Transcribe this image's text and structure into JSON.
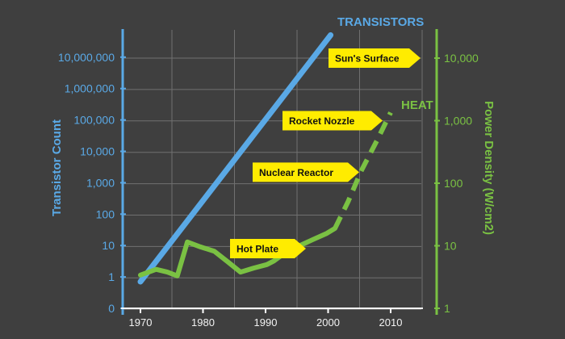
{
  "chart_data": {
    "type": "line",
    "x_ticks": [
      "1970",
      "1980",
      "1990",
      "2000",
      "2010"
    ],
    "xlim": [
      1967,
      2015
    ],
    "left_axis": {
      "title": "Transistor Count",
      "ticks": [
        "0",
        "1",
        "10",
        "100",
        "1,000",
        "10,000",
        "100,000",
        "1,000,000",
        "10,000,000"
      ],
      "scale": "log"
    },
    "right_axis": {
      "title": "Power Density (W/cm2)",
      "ticks": [
        "1",
        "10",
        "100",
        "1,000",
        "10,000"
      ],
      "scale": "log"
    },
    "grid": true,
    "series": [
      {
        "name": "TRANSISTORS",
        "axis": "left",
        "style": "solid",
        "color": "#5aa9e6",
        "points": [
          [
            1970,
            0.7
          ],
          [
            2000.4,
            50000000
          ]
        ]
      },
      {
        "name": "HEAT",
        "axis": "right",
        "style": "solid-then-dashed",
        "color": "#7ac143",
        "points": [
          [
            1970,
            3.4
          ],
          [
            1972.5,
            4.2
          ],
          [
            1974.3,
            3.8
          ],
          [
            1975.9,
            3.3
          ],
          [
            1977.5,
            11.5
          ],
          [
            1979.6,
            9.6
          ],
          [
            1981.8,
            8.2
          ],
          [
            1983.9,
            5.6
          ],
          [
            1986,
            3.8
          ],
          [
            1988.1,
            4.4
          ],
          [
            1990.2,
            5.0
          ],
          [
            1991.3,
            5.7
          ],
          [
            1993.1,
            7.7
          ],
          [
            1995.4,
            10.0
          ],
          [
            1997.6,
            12.6
          ],
          [
            1999.8,
            15.8
          ],
          [
            2001.1,
            19.0
          ]
        ],
        "projection": [
          [
            2001.1,
            19.0
          ],
          [
            2003.2,
            51
          ],
          [
            2005.3,
            158
          ],
          [
            2007.9,
            501
          ],
          [
            2010,
            1349
          ]
        ]
      }
    ],
    "annotations": [
      {
        "label": "Sun's Surface",
        "value": 10000,
        "axis": "right"
      },
      {
        "label": "Rocket Nozzle",
        "value": 1000,
        "axis": "right"
      },
      {
        "label": "Nuclear Reactor",
        "value": 150,
        "axis": "right"
      },
      {
        "label": "Hot Plate",
        "value": 9,
        "axis": "right"
      }
    ],
    "colors": {
      "background": "#3f3f3f",
      "grid": "#707070",
      "transistors": "#5aa9e6",
      "heat": "#7ac143",
      "callout": "#ffec00"
    }
  }
}
